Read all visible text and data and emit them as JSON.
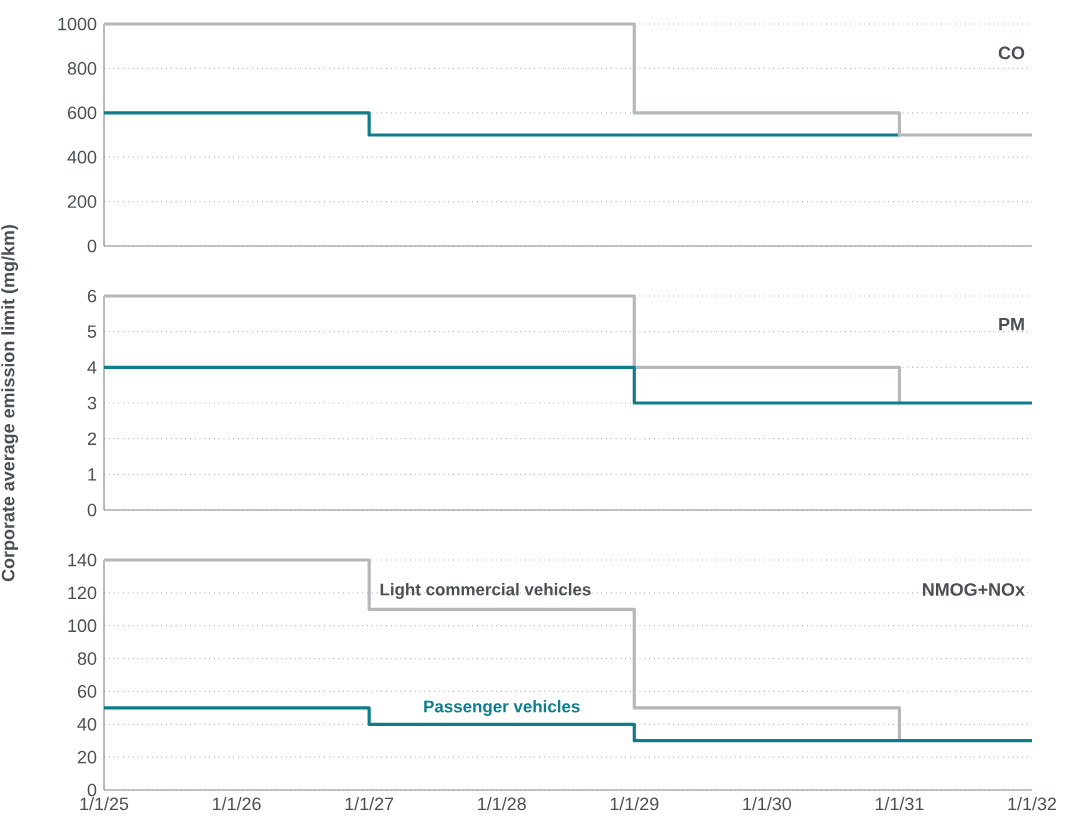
{
  "chart_data": [
    {
      "type": "step",
      "title": "CO",
      "xlim": [
        "2025-01-01",
        "2032-01-01"
      ],
      "ylim": [
        0,
        1000
      ],
      "yticks": [
        0,
        200,
        400,
        600,
        800,
        1000
      ],
      "tick_labels": "y",
      "grid": "y",
      "series": [
        {
          "color": "#0f7c8c",
          "x": [
            "2025-01-01",
            "2027-01-01",
            "2031-01-01"
          ],
          "values": [
            600,
            500,
            500
          ]
        },
        {
          "color": "#b4b8bb",
          "x": [
            "2025-01-01",
            "2029-01-01",
            "2031-01-01",
            "2032-01-01"
          ],
          "values": [
            1000,
            600,
            500,
            500
          ]
        }
      ]
    },
    {
      "type": "step",
      "title": "PM",
      "ylabel": "Corporate average emission limit (mg/km)",
      "xlim": [
        "2025-01-01",
        "2032-01-01"
      ],
      "ylim": [
        0,
        6
      ],
      "yticks": [
        0,
        1,
        2,
        3,
        4,
        5,
        6
      ],
      "tick_labels": "y",
      "grid": "y",
      "series": [
        {
          "color": "#b4b8bb",
          "x": [
            "2025-01-01",
            "2029-01-01",
            "2031-01-01"
          ],
          "values": [
            6,
            4,
            3
          ]
        },
        {
          "color": "#0f7c8c",
          "x": [
            "2025-01-01",
            "2029-01-01",
            "2032-01-01"
          ],
          "values": [
            4,
            3,
            3
          ]
        }
      ]
    },
    {
      "type": "step",
      "title": "NMOG+NOx",
      "xlim": [
        "2025-01-01",
        "2032-01-01"
      ],
      "ylim": [
        0,
        140
      ],
      "yticks": [
        0,
        20,
        40,
        60,
        80,
        100,
        120,
        140
      ],
      "grid": "y",
      "xticks": [
        {
          "value": "2025-01-01",
          "label": "1/1/25"
        },
        {
          "value": "2026-01-01",
          "label": "1/1/26"
        },
        {
          "value": "2027-01-01",
          "label": "1/1/27"
        },
        {
          "value": "2028-01-01",
          "label": "1/1/28"
        },
        {
          "value": "2029-01-01",
          "label": "1/1/29"
        },
        {
          "value": "2030-01-01",
          "label": "1/1/30"
        },
        {
          "value": "2031-01-01",
          "label": "1/1/31"
        },
        {
          "value": "2032-01-01",
          "label": "1/1/32"
        }
      ],
      "series": [
        {
          "name": "Light commercial vehicles",
          "color": "#b4b8bb",
          "x": [
            "2025-01-01",
            "2027-01-01",
            "2029-01-01",
            "2031-01-01"
          ],
          "values": [
            140,
            110,
            50,
            30
          ]
        },
        {
          "name": "Passenger vehicles",
          "color": "#0f7c8c",
          "x": [
            "2025-01-01",
            "2027-01-01",
            "2029-01-01",
            "2032-01-01"
          ],
          "values": [
            50,
            40,
            30,
            30
          ]
        }
      ]
    }
  ]
}
